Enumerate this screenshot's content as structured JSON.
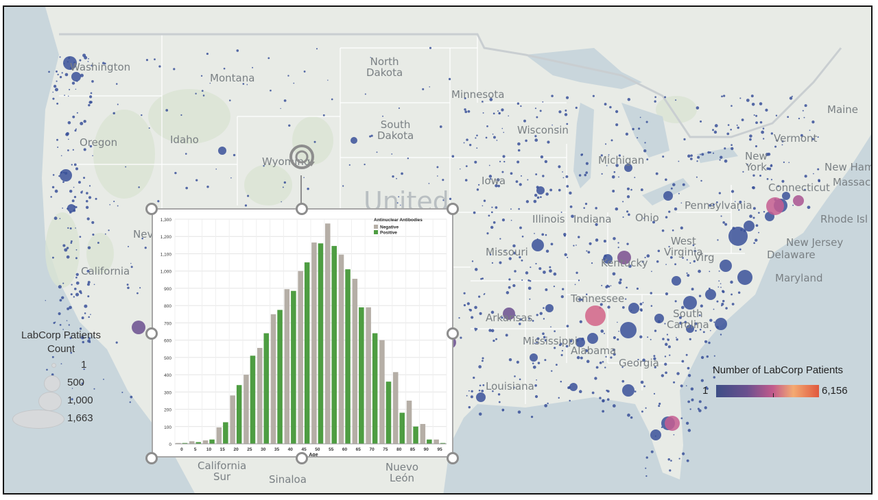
{
  "map": {
    "country_label": "United\nStates",
    "state_labels": [
      {
        "text": "Washington"
      },
      {
        "text": "Montana"
      },
      {
        "text": "North\nDakota"
      },
      {
        "text": "Minnesota"
      },
      {
        "text": "Wisconsin"
      },
      {
        "text": "Michigan"
      },
      {
        "text": "Maine"
      },
      {
        "text": "Vermont"
      },
      {
        "text": "New\nYork"
      },
      {
        "text": "New Ham"
      },
      {
        "text": "Massac"
      },
      {
        "text": "Connecticut"
      },
      {
        "text": "Rhode Isl"
      },
      {
        "text": "Oregon"
      },
      {
        "text": "Idaho"
      },
      {
        "text": "South\nDakota"
      },
      {
        "text": "Wyoming"
      },
      {
        "text": "Iowa"
      },
      {
        "text": "Pennsylvania"
      },
      {
        "text": "Illinois"
      },
      {
        "text": "Indiana"
      },
      {
        "text": "Ohio"
      },
      {
        "text": "New Jersey"
      },
      {
        "text": "Delaware"
      },
      {
        "text": "Maryland"
      },
      {
        "text": "West\nVirginia"
      },
      {
        "text": "Virg"
      },
      {
        "text": "Missouri"
      },
      {
        "text": "Kentucky"
      },
      {
        "text": "Tennessee"
      },
      {
        "text": "Arkansas"
      },
      {
        "text": "Mississippi"
      },
      {
        "text": "Alabama"
      },
      {
        "text": "Georgia"
      },
      {
        "text": "South\nCarolina"
      },
      {
        "text": "Louisiana"
      },
      {
        "text": "California"
      },
      {
        "text": "Nev"
      },
      {
        "text": "California\nSur"
      },
      {
        "text": "Sinaloa"
      },
      {
        "text": "Nuevo\nLeón"
      }
    ]
  },
  "size_legend": {
    "title": "LabCorp Patients\nCount",
    "items": [
      "1",
      "500",
      "1,000",
      "1,663"
    ]
  },
  "color_legend": {
    "title": "Number of LabCorp Patients",
    "min": "1",
    "max": "6,156",
    "colors": [
      "#3d4e86",
      "#6a4f8e",
      "#c15a8c",
      "#f4aa72",
      "#e0583e"
    ]
  },
  "chart_data": {
    "type": "bar",
    "title": "",
    "legend_title": "Antinuclear Antibodies",
    "xlabel": "Age",
    "ylabel": "",
    "ylim": [
      0,
      1300
    ],
    "yticks": [
      "0",
      "100",
      "200",
      "300",
      "400",
      "500",
      "600",
      "700",
      "800",
      "900",
      "1,000",
      "1,100",
      "1,200",
      "1,300"
    ],
    "categories": [
      "0",
      "5",
      "10",
      "15",
      "20",
      "25",
      "30",
      "35",
      "40",
      "45",
      "50",
      "55",
      "60",
      "65",
      "70",
      "75",
      "80",
      "85",
      "90",
      "95"
    ],
    "series": [
      {
        "name": "Negative",
        "color": "#b5aea6",
        "values": [
          5,
          15,
          20,
          95,
          280,
          400,
          555,
          750,
          895,
          1000,
          1165,
          1275,
          1095,
          955,
          790,
          600,
          415,
          250,
          115,
          25
        ]
      },
      {
        "name": "Positive",
        "color": "#4e9d42",
        "values": [
          5,
          10,
          25,
          125,
          340,
          510,
          640,
          775,
          885,
          1050,
          1160,
          1145,
          1010,
          790,
          640,
          360,
          180,
          100,
          25,
          5
        ]
      }
    ]
  }
}
